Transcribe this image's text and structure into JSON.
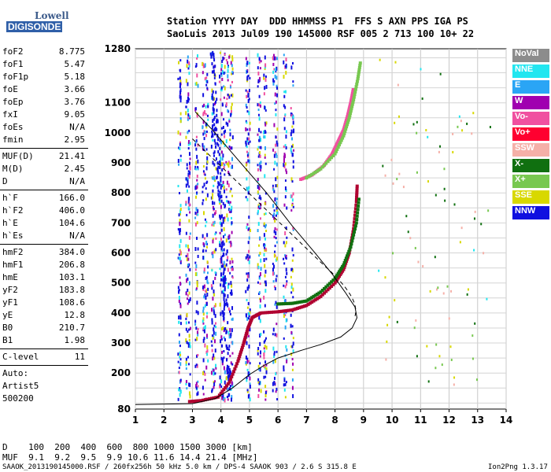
{
  "logo": {
    "line1": "Lowell",
    "line2": "DIGISONDE"
  },
  "header": {
    "line1": "Station YYYY DAY  DDD HHMMSS P1  FFS S AXN PPS IGA PS",
    "line2": "SaoLuis 2013 Jul09 190 145000 RSF 005 2 713 100 10+ 22"
  },
  "params": [
    [
      [
        "foF2",
        "8.775"
      ],
      [
        "foF1",
        "5.47"
      ],
      [
        "foF1p",
        "5.18"
      ],
      [
        "foE",
        "3.66"
      ],
      [
        "foEp",
        "3.76"
      ],
      [
        "fxI",
        "9.05"
      ],
      [
        "foEs",
        "N/A"
      ],
      [
        "fmin",
        "2.95"
      ]
    ],
    [
      [
        "MUF(D)",
        "21.41"
      ],
      [
        "M(D)",
        "2.45"
      ],
      [
        "D",
        "N/A"
      ]
    ],
    [
      [
        "h`F",
        "166.0"
      ],
      [
        "h`F2",
        "406.0"
      ],
      [
        "h`E",
        "104.6"
      ],
      [
        "h`Es",
        "N/A"
      ]
    ],
    [
      [
        "hmF2",
        "384.0"
      ],
      [
        "hmF1",
        "206.8"
      ],
      [
        "hmE",
        "103.1"
      ],
      [
        "yF2",
        "183.8"
      ],
      [
        "yF1",
        "108.6"
      ],
      [
        "yE",
        "12.8"
      ],
      [
        "B0",
        "210.7"
      ],
      [
        "B1",
        "1.98"
      ]
    ],
    [
      [
        "C-level",
        "11"
      ]
    ]
  ],
  "auto": [
    "Auto:",
    "Artist5",
    "500200"
  ],
  "legend": [
    {
      "label": "NoVal",
      "color": "#8c8c8c"
    },
    {
      "label": "NNE",
      "color": "#22e6f0"
    },
    {
      "label": "E",
      "color": "#2aa5f5"
    },
    {
      "label": "W",
      "color": "#a000b0"
    },
    {
      "label": "Vo-",
      "color": "#f050a0"
    },
    {
      "label": "Vo+",
      "color": "#ff0030"
    },
    {
      "label": "SSW",
      "color": "#f5b0a8"
    },
    {
      "label": "X-",
      "color": "#107010"
    },
    {
      "label": "X+",
      "color": "#78c850"
    },
    {
      "label": "SSE",
      "color": "#d8d800"
    },
    {
      "label": "NNW",
      "color": "#1010e0"
    }
  ],
  "footer": {
    "line1": "D    100  200  400  600  800 1000 1500 3000 [km]",
    "line2": "MUF  9.1  9.2  9.5  9.9 10.6 11.6 14.4 21.4 [MHz]",
    "line3": "SAAOK_2013190145000.RSF / 260fx256h 50 kHz 5.0 km / DPS-4 SAAOK 903 / 2.6 S 315.8 E",
    "version": "Ion2Png 1.3.17"
  },
  "chart_data": {
    "type": "scatter",
    "title": "",
    "xlabel": "",
    "ylabel": "",
    "xlim": [
      1,
      14
    ],
    "ylim": [
      80,
      1280
    ],
    "x_ticks": [
      "1",
      "2",
      "3",
      "4",
      "5",
      "6",
      "7",
      "8",
      "9",
      "10",
      "11",
      "12",
      "13",
      "14"
    ],
    "y_ticks": [
      "80",
      "200",
      "300",
      "400",
      "500",
      "600",
      "700",
      "800",
      "900",
      "1000",
      "1100",
      "1280"
    ],
    "series": [
      {
        "name": "Vo+",
        "color": "#b00030",
        "points": [
          [
            2.9,
            105
          ],
          [
            3.3,
            108
          ],
          [
            3.9,
            120
          ],
          [
            4.3,
            170
          ],
          [
            4.6,
            240
          ],
          [
            4.8,
            300
          ],
          [
            4.95,
            350
          ],
          [
            5.1,
            385
          ],
          [
            5.4,
            400
          ],
          [
            6.0,
            404
          ],
          [
            6.5,
            410
          ],
          [
            7.0,
            425
          ],
          [
            7.5,
            455
          ],
          [
            8.0,
            500
          ],
          [
            8.3,
            545
          ],
          [
            8.5,
            600
          ],
          [
            8.65,
            680
          ],
          [
            8.75,
            770
          ],
          [
            8.78,
            830
          ]
        ]
      },
      {
        "name": "X-",
        "color": "#107010",
        "points": [
          [
            6.0,
            430
          ],
          [
            6.5,
            432
          ],
          [
            7.0,
            440
          ],
          [
            7.5,
            470
          ],
          [
            8.0,
            515
          ],
          [
            8.3,
            560
          ],
          [
            8.55,
            620
          ],
          [
            8.75,
            700
          ],
          [
            8.85,
            790
          ]
        ]
      },
      {
        "name": "Vo-",
        "color": "#f050a0",
        "points": [
          [
            6.8,
            845
          ],
          [
            7.2,
            860
          ],
          [
            7.6,
            890
          ],
          [
            7.9,
            930
          ],
          [
            8.1,
            970
          ],
          [
            8.3,
            1010
          ],
          [
            8.45,
            1060
          ],
          [
            8.55,
            1100
          ],
          [
            8.65,
            1150
          ]
        ]
      },
      {
        "name": "X+",
        "color": "#78c850",
        "points": [
          [
            7.0,
            850
          ],
          [
            7.5,
            880
          ],
          [
            8.0,
            930
          ],
          [
            8.3,
            990
          ],
          [
            8.5,
            1050
          ],
          [
            8.65,
            1110
          ],
          [
            8.8,
            1180
          ],
          [
            8.9,
            1240
          ]
        ]
      }
    ],
    "profile": [
      [
        1,
        95
      ],
      [
        3.0,
        98
      ],
      [
        3.8,
        115
      ],
      [
        4.4,
        150
      ],
      [
        5.0,
        195
      ],
      [
        5.5,
        225
      ],
      [
        6.0,
        250
      ],
      [
        6.8,
        275
      ],
      [
        7.5,
        295
      ],
      [
        8.2,
        320
      ],
      [
        8.6,
        350
      ],
      [
        8.77,
        384
      ],
      [
        8.7,
        420
      ],
      [
        8.35,
        470
      ],
      [
        7.9,
        530
      ],
      [
        7.3,
        600
      ],
      [
        6.5,
        690
      ],
      [
        5.6,
        800
      ],
      [
        4.6,
        910
      ],
      [
        3.7,
        1010
      ],
      [
        3.1,
        1070
      ]
    ],
    "grid": true
  }
}
